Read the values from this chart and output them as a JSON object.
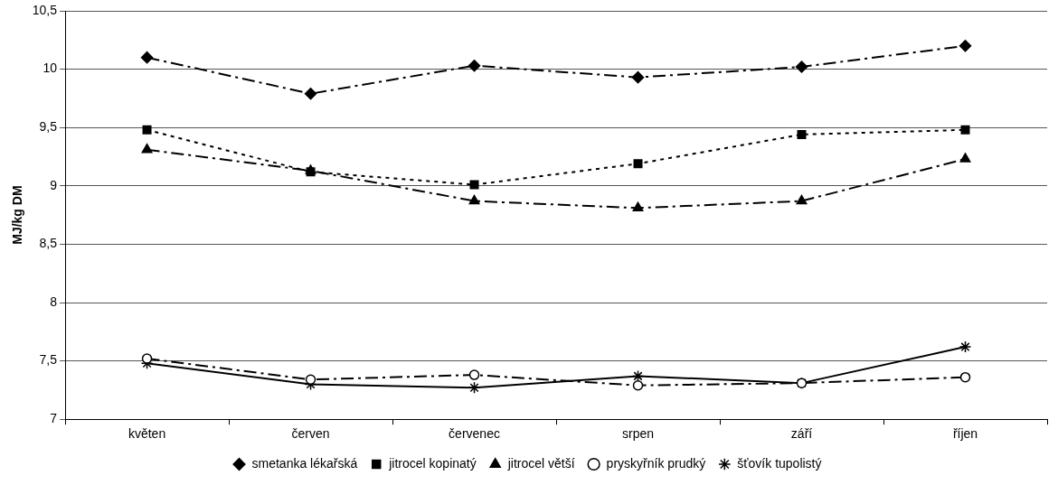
{
  "chart_data": {
    "type": "line",
    "ylabel": "MJ/kg DM",
    "categories": [
      "květen",
      "červen",
      "červenec",
      "srpen",
      "září",
      "říjen"
    ],
    "series": [
      {
        "name": "smetanka lékařská",
        "color": "#000000",
        "marker": "diamond",
        "line_style": "dashed",
        "values": [
          10.1,
          9.79,
          10.03,
          9.93,
          10.02,
          10.2
        ]
      },
      {
        "name": "jitrocel kopinatý",
        "color": "#000000",
        "marker": "square",
        "line_style": "dotted",
        "values": [
          9.48,
          9.12,
          9.01,
          9.19,
          9.44,
          9.48
        ]
      },
      {
        "name": "jitrocel větší",
        "color": "#000000",
        "marker": "triangle",
        "line_style": "dashed",
        "values": [
          9.31,
          9.13,
          8.87,
          8.81,
          8.87,
          9.23
        ]
      },
      {
        "name": "pryskyřník prudký",
        "color": "#000000",
        "marker": "circle",
        "line_style": "dashed",
        "values": [
          7.52,
          7.34,
          7.38,
          7.29,
          7.31,
          7.36
        ]
      },
      {
        "name": "šťovík tupolistý",
        "color": "#000000",
        "marker": "cross",
        "line_style": "solid",
        "values": [
          7.48,
          7.3,
          7.27,
          7.37,
          7.31,
          7.62
        ]
      }
    ],
    "ylim": [
      7,
      10.5
    ],
    "yticks": [
      7,
      {
        "value": 7.5,
        "label": "7,5"
      },
      8,
      {
        "value": 8.5,
        "label": "8,5"
      },
      9,
      {
        "value": 9.5,
        "label": "9,5"
      },
      10,
      {
        "value": 10.5,
        "label": "10,5"
      }
    ],
    "grid": "y",
    "legend": "bottom"
  }
}
